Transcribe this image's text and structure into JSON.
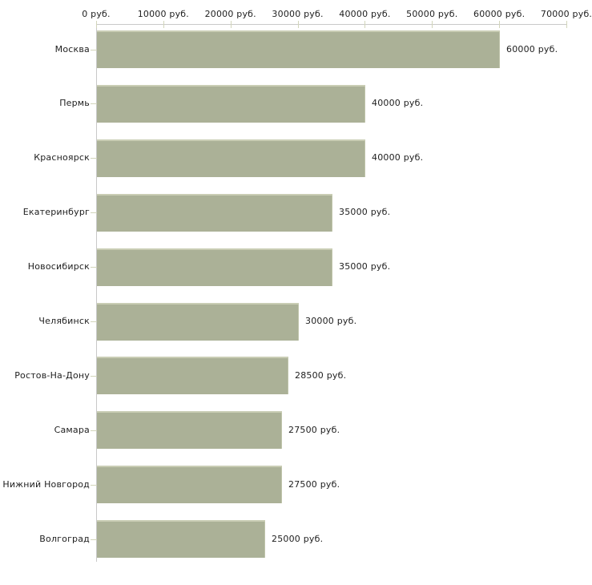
{
  "chart_data": {
    "type": "bar",
    "orientation": "horizontal",
    "title": "",
    "xlabel": "",
    "ylabel": "",
    "unit": "руб.",
    "categories": [
      "Москва",
      "Пермь",
      "Красноярск",
      "Екатеринбург",
      "Новосибирск",
      "Челябинск",
      "Ростов-На-Дону",
      "Самара",
      "Нижний Новгород",
      "Волгоград"
    ],
    "values": [
      60000,
      40000,
      40000,
      35000,
      35000,
      30000,
      28500,
      27500,
      27500,
      25000
    ],
    "value_labels": [
      "60000 руб.",
      "40000 руб.",
      "40000 руб.",
      "35000 руб.",
      "35000 руб.",
      "30000 руб.",
      "28500 руб.",
      "27500 руб.",
      "27500 руб.",
      "25000 руб."
    ],
    "x_ticks": [
      0,
      10000,
      20000,
      30000,
      40000,
      50000,
      60000,
      70000
    ],
    "x_tick_labels": [
      "0 руб.",
      "10000 руб.",
      "20000 руб.",
      "30000 руб.",
      "40000 руб.",
      "50000 руб.",
      "60000 руб.",
      "70000 руб."
    ],
    "xlim": [
      0,
      70000
    ],
    "grid": false,
    "legend": "none",
    "colors": {
      "bar": "#abb197",
      "bar_highlight": "#c9cdb4",
      "axis": "#c9c9c9",
      "tick": "#d2d5bb",
      "text": "#1e1e1e",
      "background": "#ffffff"
    }
  }
}
